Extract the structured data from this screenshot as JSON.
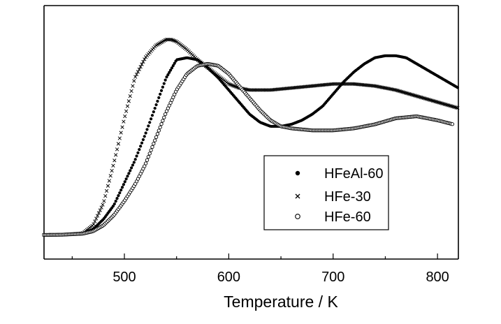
{
  "chart_data": {
    "type": "scatter",
    "title": "",
    "xlabel": "Temperature / K",
    "ylabel": "",
    "xlim": [
      423,
      820
    ],
    "ylim": [
      0,
      1
    ],
    "xticks": [
      500,
      600,
      700,
      800
    ],
    "xticks_minor": [
      450,
      550,
      650,
      750
    ],
    "grid": false,
    "legend": {
      "position": "center-right"
    },
    "series": [
      {
        "name": "HFeAl-60",
        "marker": "filled-circle",
        "x": [
          423,
          440,
          460,
          470,
          480,
          490,
          500,
          510,
          520,
          530,
          540,
          550,
          560,
          570,
          580,
          590,
          600,
          610,
          620,
          630,
          640,
          650,
          660,
          670,
          680,
          690,
          700,
          710,
          720,
          730,
          740,
          750,
          760,
          770,
          780,
          790,
          800,
          810,
          820
        ],
        "y": [
          0.002,
          0.003,
          0.008,
          0.03,
          0.08,
          0.15,
          0.26,
          0.37,
          0.5,
          0.64,
          0.78,
          0.87,
          0.88,
          0.87,
          0.83,
          0.78,
          0.72,
          0.66,
          0.6,
          0.56,
          0.54,
          0.54,
          0.55,
          0.57,
          0.6,
          0.64,
          0.7,
          0.76,
          0.81,
          0.85,
          0.88,
          0.89,
          0.89,
          0.88,
          0.85,
          0.82,
          0.79,
          0.76,
          0.73
        ]
      },
      {
        "name": "HFe-30",
        "marker": "cross",
        "x": [
          423,
          440,
          460,
          470,
          480,
          490,
          500,
          510,
          520,
          530,
          540,
          545,
          550,
          560,
          570,
          580,
          590,
          600,
          610,
          620,
          640,
          660,
          680,
          700,
          720,
          740,
          760,
          780,
          800,
          820
        ],
        "y": [
          0.002,
          0.003,
          0.01,
          0.05,
          0.16,
          0.36,
          0.58,
          0.78,
          0.88,
          0.94,
          0.97,
          0.97,
          0.96,
          0.92,
          0.87,
          0.83,
          0.79,
          0.75,
          0.73,
          0.72,
          0.72,
          0.73,
          0.74,
          0.75,
          0.75,
          0.74,
          0.72,
          0.69,
          0.66,
          0.63
        ]
      },
      {
        "name": "HFe-60",
        "marker": "open-circle",
        "x": [
          423,
          440,
          460,
          470,
          480,
          490,
          500,
          510,
          520,
          530,
          540,
          550,
          560,
          570,
          580,
          590,
          600,
          610,
          620,
          630,
          640,
          650,
          660,
          680,
          700,
          720,
          740,
          760,
          780,
          800,
          815
        ],
        "y": [
          0.002,
          0.003,
          0.008,
          0.02,
          0.05,
          0.1,
          0.17,
          0.25,
          0.35,
          0.48,
          0.61,
          0.72,
          0.8,
          0.84,
          0.85,
          0.84,
          0.8,
          0.74,
          0.68,
          0.62,
          0.57,
          0.54,
          0.53,
          0.52,
          0.52,
          0.53,
          0.55,
          0.58,
          0.59,
          0.57,
          0.55
        ]
      }
    ]
  }
}
